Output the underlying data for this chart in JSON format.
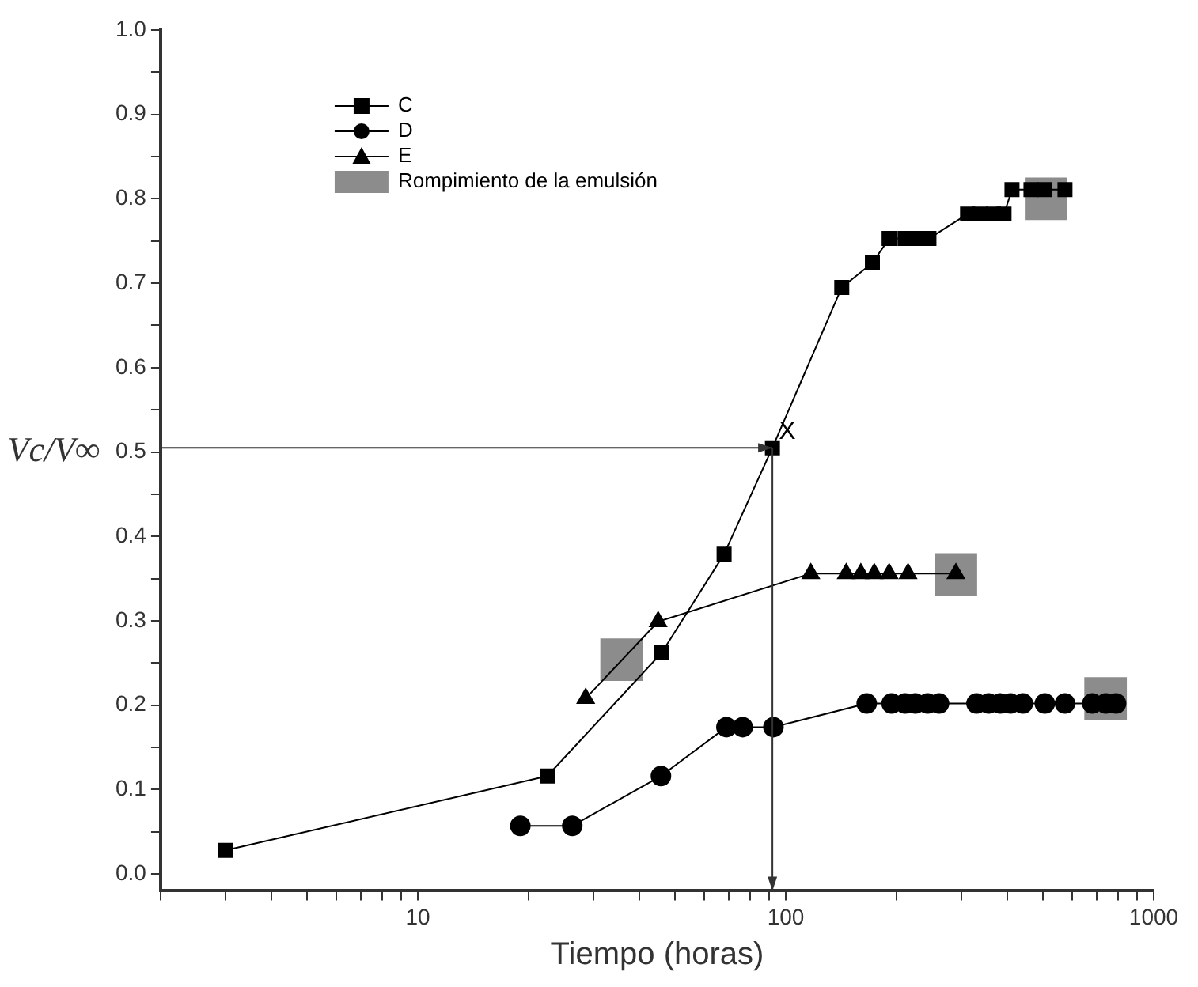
{
  "chart_data": {
    "type": "line",
    "xlabel": "Tiempo (horas)",
    "ylabel": "Vc/V∞",
    "log": "x",
    "grid": false,
    "legend": "top left",
    "xlim": [
      2,
      1000
    ],
    "xticks": [
      {
        "value": 2,
        "label": null
      },
      {
        "value": 3,
        "label": null
      },
      {
        "value": 4,
        "label": null
      },
      {
        "value": 5,
        "label": null
      },
      {
        "value": 6,
        "label": null
      },
      {
        "value": 7,
        "label": null
      },
      {
        "value": 8,
        "label": null
      },
      {
        "value": 9,
        "label": null
      },
      10,
      {
        "value": 20,
        "label": null
      },
      {
        "value": 30,
        "label": null
      },
      {
        "value": 40,
        "label": null
      },
      {
        "value": 50,
        "label": null
      },
      {
        "value": 60,
        "label": null
      },
      {
        "value": 70,
        "label": null
      },
      {
        "value": 80,
        "label": null
      },
      {
        "value": 90,
        "label": null
      },
      100,
      {
        "value": 200,
        "label": null
      },
      {
        "value": 300,
        "label": null
      },
      {
        "value": 400,
        "label": null
      },
      {
        "value": 500,
        "label": null
      },
      {
        "value": 600,
        "label": null
      },
      {
        "value": 700,
        "label": null
      },
      {
        "value": 800,
        "label": null
      },
      {
        "value": 900,
        "label": null
      },
      1000
    ],
    "ylim": [
      -0.02,
      1.0
    ],
    "yticks": [
      {
        "value": 0,
        "label": "0.0"
      },
      {
        "value": 0.05,
        "label": null
      },
      {
        "value": 0.1,
        "label": "0.1"
      },
      {
        "value": 0.15,
        "label": null
      },
      {
        "value": 0.2,
        "label": "0.2"
      },
      {
        "value": 0.25,
        "label": null
      },
      {
        "value": 0.3,
        "label": "0.3"
      },
      {
        "value": 0.35,
        "label": null
      },
      {
        "value": 0.4,
        "label": "0.4"
      },
      {
        "value": 0.45,
        "label": null
      },
      {
        "value": 0.5,
        "label": "0.5"
      },
      {
        "value": 0.55,
        "label": null
      },
      {
        "value": 0.6,
        "label": "0.6"
      },
      {
        "value": 0.65,
        "label": null
      },
      {
        "value": 0.7,
        "label": "0.7"
      },
      {
        "value": 0.75,
        "label": null
      },
      {
        "value": 0.8,
        "label": "0.8"
      },
      {
        "value": 0.85,
        "label": null
      },
      {
        "value": 0.9,
        "label": "0.9"
      },
      {
        "value": 0.95,
        "label": null
      },
      {
        "value": 1.0,
        "label": "1.0"
      }
    ],
    "series": [
      {
        "name": "C",
        "color": "#000000",
        "marker": "square",
        "x": [
          3,
          22.5,
          46,
          68,
          92,
          142,
          172,
          191,
          211,
          230,
          245,
          312,
          337,
          367,
          392,
          412,
          464,
          506,
          574
        ],
        "values": [
          0.028,
          0.116,
          0.262,
          0.379,
          0.505,
          0.695,
          0.724,
          0.753,
          0.753,
          0.753,
          0.753,
          0.782,
          0.782,
          0.782,
          0.782,
          0.811,
          0.811,
          0.811,
          0.811
        ]
      },
      {
        "name": "D",
        "color": "#000000",
        "marker": "circle",
        "x": [
          19,
          26.3,
          45.8,
          69,
          76.4,
          92.6,
          166,
          194,
          211,
          225,
          243,
          261,
          330,
          356,
          383,
          408,
          441,
          506,
          574,
          681,
          741,
          790
        ],
        "values": [
          0.057,
          0.057,
          0.116,
          0.174,
          0.174,
          0.174,
          0.202,
          0.202,
          0.202,
          0.202,
          0.202,
          0.202,
          0.202,
          0.202,
          0.202,
          0.202,
          0.202,
          0.202,
          0.202,
          0.202,
          0.202,
          0.202
        ]
      },
      {
        "name": "E",
        "color": "#000000",
        "marker": "triangle",
        "x": [
          28.6,
          45,
          117,
          146,
          160,
          174,
          191,
          215,
          290
        ],
        "values": [
          0.208,
          0.299,
          0.356,
          0.356,
          0.356,
          0.356,
          0.356,
          0.356,
          0.356
        ]
      },
      {
        "name": "Rompimiento de la emulsión",
        "type": "scatter",
        "color": "#8c8c8c",
        "marker": "square",
        "x": [
          35.8,
          290,
          510,
          740
        ],
        "values": [
          0.254,
          0.355,
          0.8,
          0.208
        ]
      }
    ],
    "annotations": [
      {
        "text": "X",
        "x": 92,
        "y": 0.505
      }
    ]
  }
}
